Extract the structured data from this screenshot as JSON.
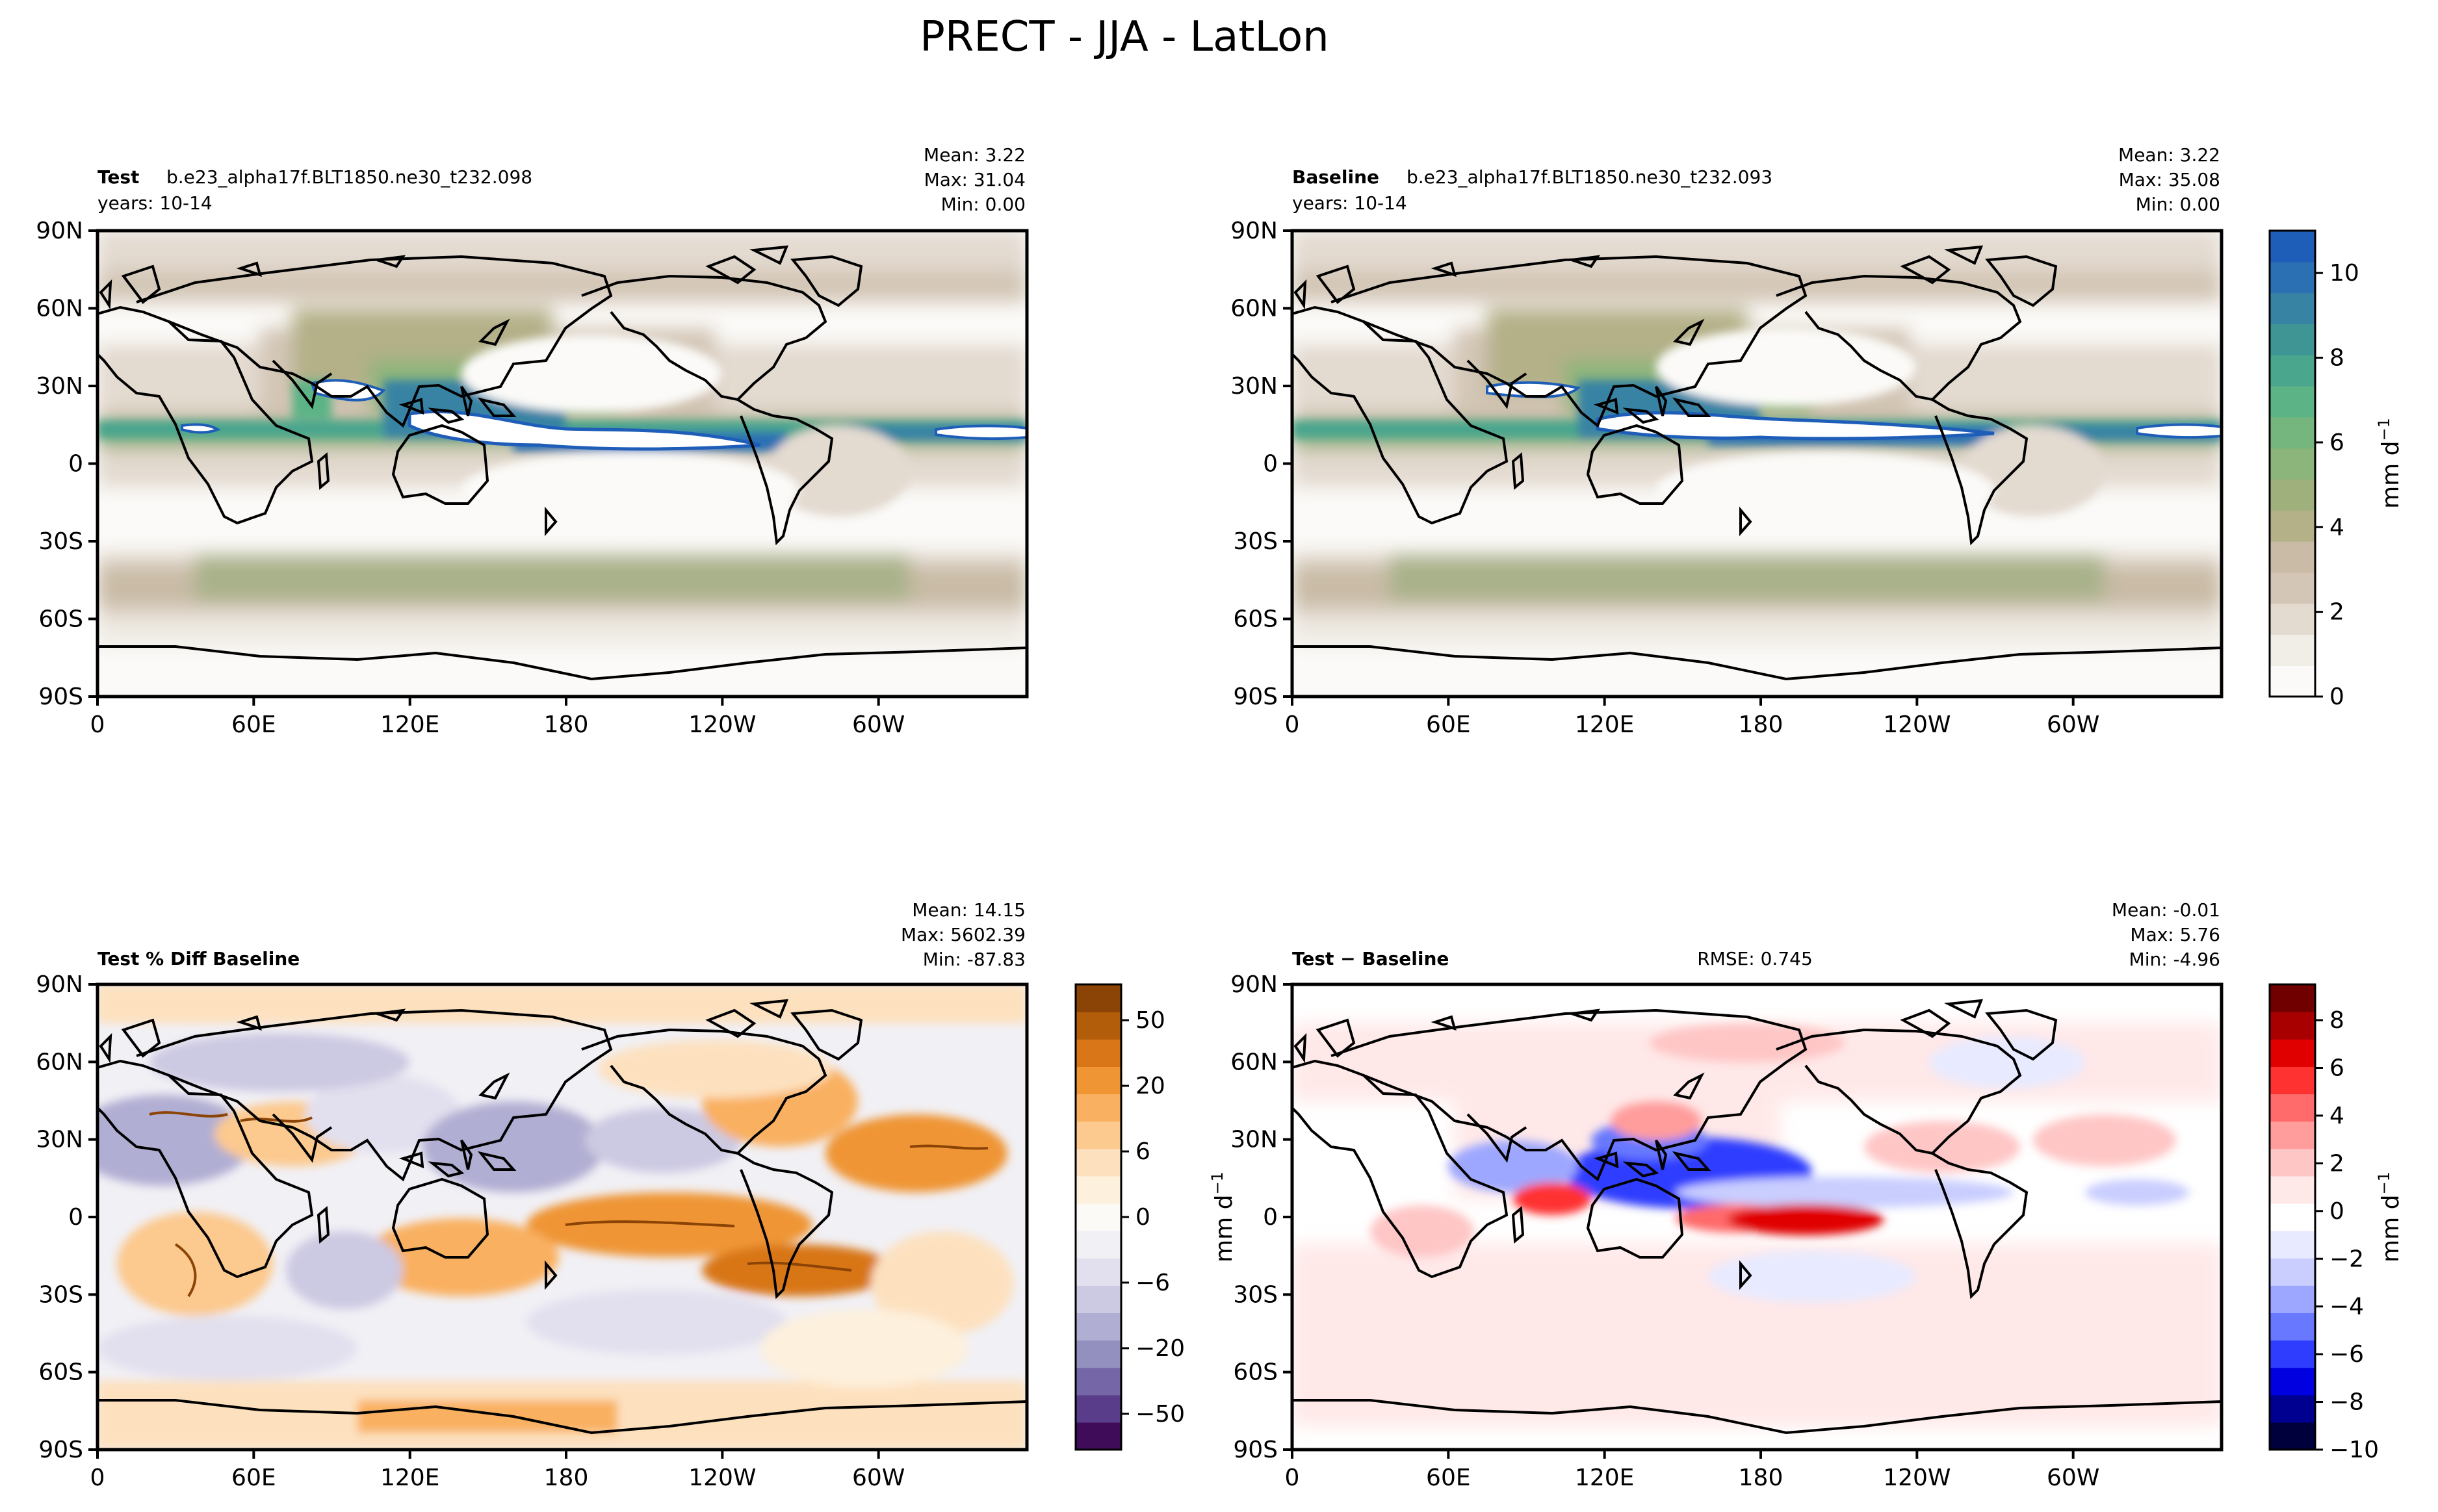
{
  "figure": {
    "title": "PRECT - JJA - LatLon"
  },
  "chart_data": [
    {
      "type": "heatmap",
      "panel": "test",
      "label_bold": "Test",
      "label_rest": "b.e23_alpha17f.BLT1850.ne30_t232.098",
      "years": "years: 10-14",
      "stats": [
        "Mean:  3.22",
        "Max: 31.04",
        "Min:  0.00"
      ],
      "x_ticks": [
        "0",
        "60E",
        "120E",
        "180",
        "120W",
        "60W"
      ],
      "y_ticks": [
        "90N",
        "60N",
        "30N",
        "0",
        "30S",
        "60S",
        "90S"
      ],
      "colormap": "precip"
    },
    {
      "type": "heatmap",
      "panel": "baseline",
      "label_bold": "Baseline",
      "label_rest": "b.e23_alpha17f.BLT1850.ne30_t232.093",
      "years": "years: 10-14",
      "stats": [
        "Mean:  3.22",
        "Max: 35.08",
        "Min:  0.00"
      ],
      "x_ticks": [
        "0",
        "60E",
        "120E",
        "180",
        "120W",
        "60W"
      ],
      "y_ticks": [
        "90N",
        "60N",
        "30N",
        "0",
        "30S",
        "60S",
        "90S"
      ],
      "colormap": "precip",
      "colorbar": {
        "ticks": [
          "0",
          "2",
          "4",
          "6",
          "8",
          "10"
        ],
        "tick_values": [
          0,
          2,
          4,
          6,
          8,
          10
        ],
        "range": [
          0,
          11
        ],
        "label": "mm d",
        "label_sup": "−1",
        "colors": [
          "#fbfaf8",
          "#f1ede7",
          "#e3dad0",
          "#d3c6b6",
          "#c9bba6",
          "#b4b088",
          "#9fb07c",
          "#8bb57a",
          "#74b67d",
          "#5cb385",
          "#4aa68d",
          "#3e9594",
          "#3783a4",
          "#2c70b4",
          "#1f5eb8"
        ]
      }
    },
    {
      "type": "heatmap",
      "panel": "percent_diff",
      "label_bold": "Test % Diff Baseline",
      "stats": [
        "Mean: 14.15",
        "Max: 5602.39",
        "Min: -87.83"
      ],
      "x_ticks": [
        "0",
        "60E",
        "120E",
        "180",
        "120W",
        "60W"
      ],
      "y_ticks": [
        "90N",
        "60N",
        "30N",
        "0",
        "30S",
        "60S",
        "90S"
      ],
      "colormap": "puor",
      "colorbar": {
        "ticks": [
          "50",
          "20",
          "6",
          "0",
          "−6",
          "−20",
          "−50"
        ],
        "colors": [
          "#3f0c5a",
          "#5a3d8a",
          "#7566a8",
          "#9390c0",
          "#b1aed3",
          "#ccc9e2",
          "#e2e0ee",
          "#f1f0f5",
          "#fbfaf7",
          "#fdf0dd",
          "#fde1bf",
          "#fcc98e",
          "#f9b060",
          "#ef9534",
          "#d87618",
          "#b25d0a",
          "#8b4406"
        ]
      }
    },
    {
      "type": "heatmap",
      "panel": "difference",
      "label_bold": "Test − Baseline",
      "rmse": "RMSE: 0.745",
      "stats": [
        "Mean: -0.01",
        "Max:  5.76",
        "Min: -4.96"
      ],
      "x_ticks": [
        "0",
        "60E",
        "120E",
        "180",
        "120W",
        "60W"
      ],
      "y_ticks": [
        "90N",
        "60N",
        "30N",
        "0",
        "30S",
        "60S",
        "90S"
      ],
      "colormap": "bwr",
      "colorbar": {
        "ticks": [
          "8",
          "6",
          "4",
          "2",
          "0",
          "−2",
          "−4",
          "−6",
          "−8",
          "−10"
        ],
        "tick_values": [
          8,
          6,
          4,
          2,
          0,
          -2,
          -4,
          -6,
          -8,
          -10
        ],
        "range": [
          -10,
          9.5
        ],
        "label": "mm d",
        "label_sup": "−1",
        "colors": [
          "#00003c",
          "#000090",
          "#0000e0",
          "#2f3dff",
          "#6878ff",
          "#9ea7ff",
          "#c9ceff",
          "#e8eaff",
          "#ffffff",
          "#ffe8e8",
          "#ffc6c6",
          "#ff9c9c",
          "#ff6a6a",
          "#ff3232",
          "#e00000",
          "#a80000",
          "#700000"
        ]
      }
    }
  ]
}
